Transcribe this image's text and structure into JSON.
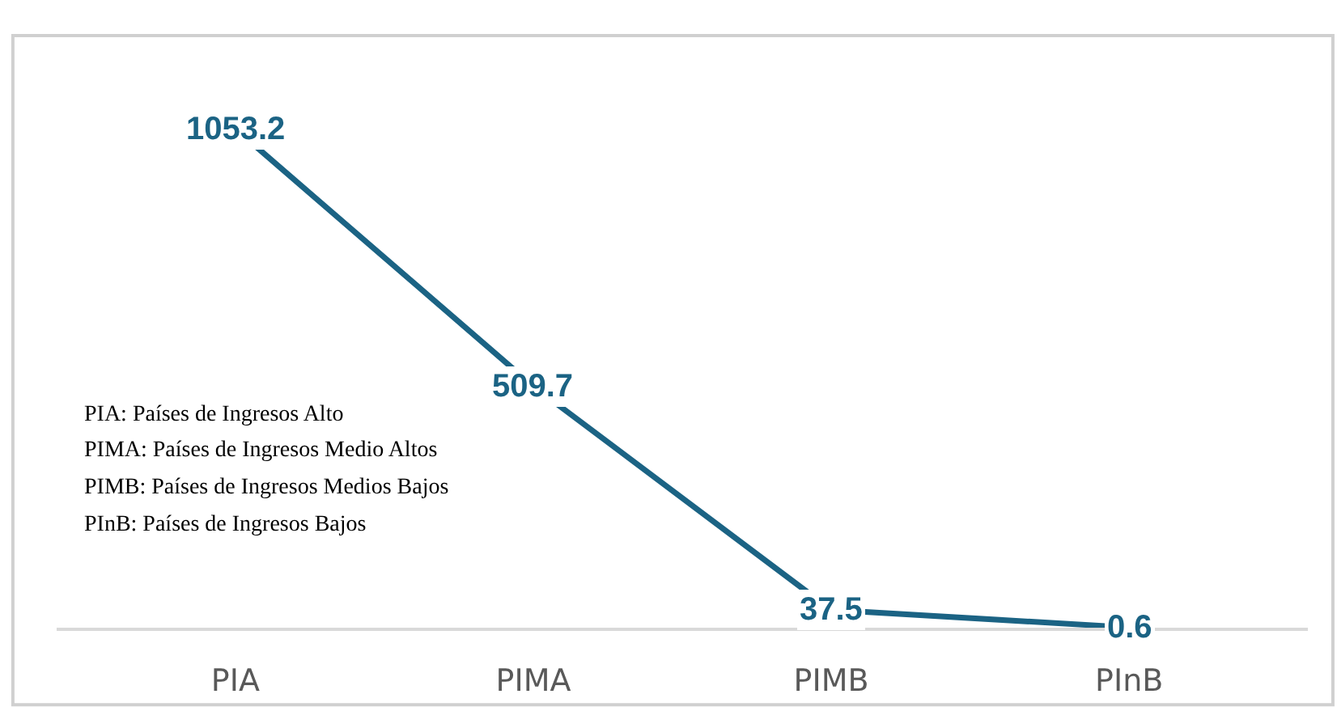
{
  "chart_data": {
    "type": "line",
    "categories": [
      "PIA",
      "PIMA",
      "PIMB",
      "PInB"
    ],
    "series": [
      {
        "color": "#1b6384",
        "values": [
          1053.2,
          509.7,
          37.5,
          0.6
        ]
      }
    ],
    "ylim": [
      0,
      1250
    ],
    "data_labels": true,
    "grid": false,
    "tick_labels": "x",
    "line_style": "solid",
    "annotations": [
      "PIA: Países de Ingresos Alto",
      "PIMA: Países de Ingresos Medio Altos",
      "PIMB: Países de Ingresos Medios Bajos",
      "PInB: Países de Ingresos Bajos"
    ]
  }
}
